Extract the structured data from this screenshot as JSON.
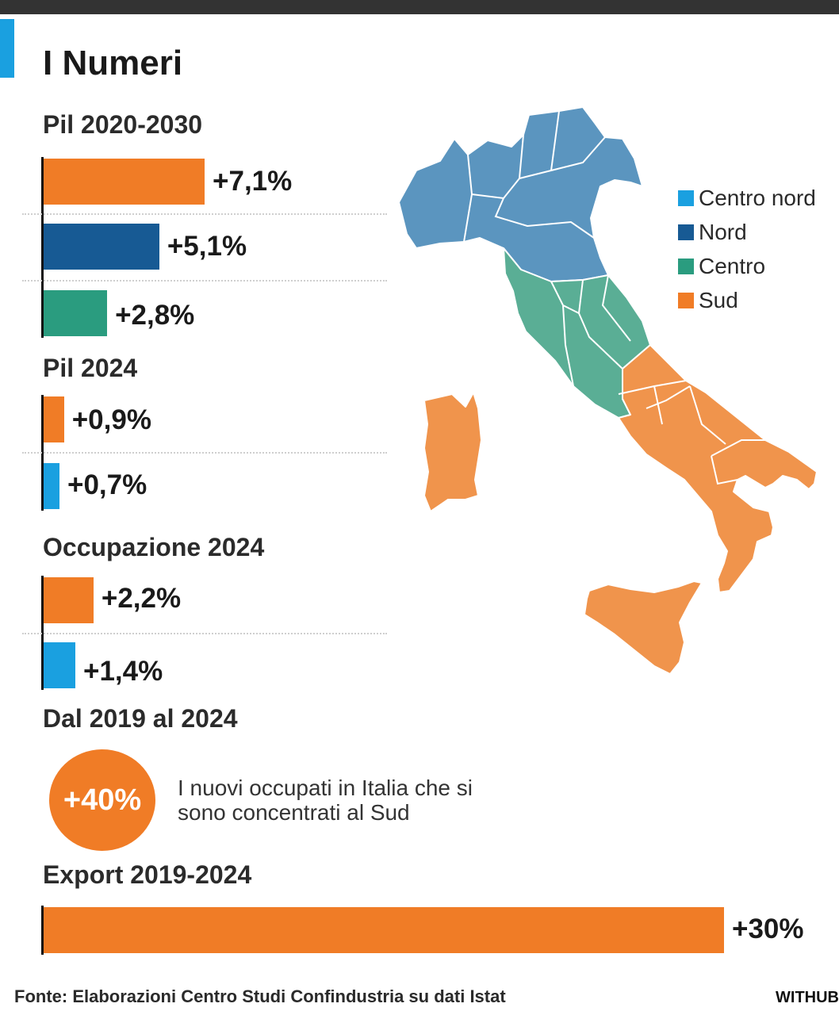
{
  "title": "I Numeri",
  "colors": {
    "orange": "#f07c26",
    "nord": "#175a94",
    "centro_nord": "#1aa0e0",
    "centro": "#2a9c7f",
    "map_north": "#5b95bf",
    "map_centro": "#5aae95",
    "map_sud": "#f0944c"
  },
  "legend": [
    {
      "label": "Centro nord",
      "color": "#1aa0e0"
    },
    {
      "label": "Nord",
      "color": "#175a94"
    },
    {
      "label": "Centro",
      "color": "#2a9c7f"
    },
    {
      "label": "Sud",
      "color": "#f07c26"
    }
  ],
  "chart_data": [
    {
      "type": "bar",
      "title": "Pil 2020-2030",
      "categories": [
        "Sud",
        "Nord",
        "Centro"
      ],
      "values": [
        7.1,
        5.1,
        2.8
      ],
      "value_labels": [
        "+7,1%",
        "+5,1%",
        "+2,8%"
      ]
    },
    {
      "type": "bar",
      "title": "Pil 2024",
      "categories": [
        "Sud",
        "Centro nord"
      ],
      "values": [
        0.9,
        0.7
      ],
      "value_labels": [
        "+0,9%",
        "+0,7%"
      ]
    },
    {
      "type": "bar",
      "title": "Occupazione 2024",
      "categories": [
        "Sud",
        "Centro nord"
      ],
      "values": [
        2.2,
        1.4
      ],
      "value_labels": [
        "+2,2%",
        "+1,4%"
      ]
    },
    {
      "type": "bar",
      "title": "Export 2019-2024",
      "categories": [
        "Sud"
      ],
      "values": [
        30
      ],
      "value_labels": [
        "+30%"
      ]
    }
  ],
  "highlight": {
    "title": "Dal 2019 al 2024",
    "value": "+40%",
    "description": "I nuovi occupati in Italia che si sono concentrati al Sud"
  },
  "source": "Fonte: Elaborazioni Centro Studi Confindustria su dati Istat",
  "brand": "WITHUB"
}
